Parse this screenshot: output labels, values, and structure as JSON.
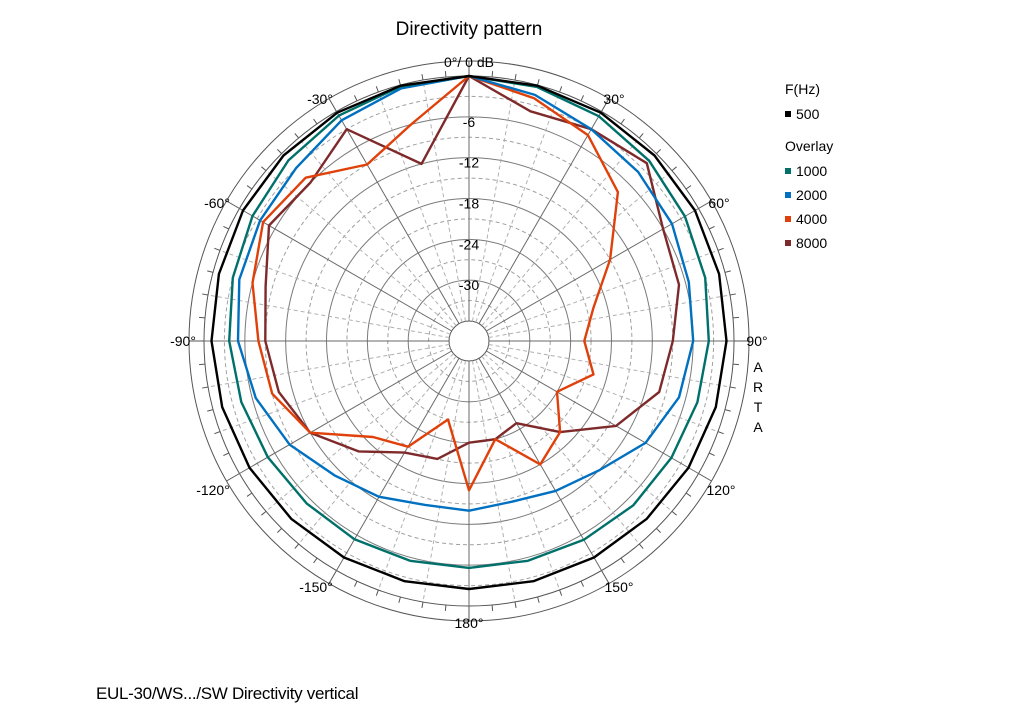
{
  "chart_data": {
    "type": "polar",
    "title": "Directivity pattern",
    "top_label": "0°/ 0 dB",
    "watermark": "ARTA",
    "angle_labels": [
      "-30°",
      "30°",
      "-60°",
      "60°",
      "-90°",
      "90°",
      "-120°",
      "120°",
      "-150°",
      "150°",
      "180°"
    ],
    "radial_labels": [
      "-6",
      "-12",
      "-18",
      "-24",
      "-30"
    ],
    "radial_range_db": [
      -36,
      0
    ],
    "radial_major_step_db": 6,
    "angular_major_step_deg": 30,
    "grid": true,
    "legend": {
      "position": "right",
      "primary_header": "F(Hz)",
      "overlay_header": "Overlay"
    },
    "angles_deg": [
      0,
      15,
      30,
      45,
      60,
      75,
      90,
      105,
      120,
      135,
      150,
      165,
      180,
      195,
      210,
      225,
      240,
      255,
      270,
      285,
      300,
      315,
      330,
      345
    ],
    "series": [
      {
        "name": "500",
        "group": "primary",
        "color": "#000000",
        "values": [
          0,
          -0.1,
          -0.2,
          -0.4,
          -0.6,
          -0.9,
          -1.1,
          -1.4,
          -1.7,
          -2.0,
          -2.2,
          -2.4,
          -2.5,
          -2.4,
          -2.2,
          -2.0,
          -1.7,
          -1.4,
          -1.1,
          -0.9,
          -0.6,
          -0.4,
          -0.2,
          -0.1
        ]
      },
      {
        "name": "1000",
        "group": "overlay",
        "color": "#00706b",
        "values": [
          0,
          -0.3,
          -0.8,
          -1.5,
          -2.3,
          -3.0,
          -3.7,
          -4.2,
          -4.6,
          -4.8,
          -5.2,
          -5.5,
          -5.6,
          -5.5,
          -5.3,
          -5.2,
          -4.8,
          -4.3,
          -3.7,
          -3.0,
          -2.2,
          -1.4,
          -0.7,
          -0.2
        ]
      },
      {
        "name": "2000",
        "group": "overlay",
        "color": "#0070c0",
        "values": [
          0,
          -1.5,
          -3.0,
          -3.8,
          -4.5,
          -5.5,
          -6.0,
          -7.0,
          -9.0,
          -12.0,
          -13.5,
          -14.5,
          -14.0,
          -14.0,
          -12.5,
          -11.0,
          -8.5,
          -6.5,
          -5.0,
          -4.0,
          -3.5,
          -3.0,
          -1.5,
          -0.5
        ]
      },
      {
        "name": "4000",
        "group": "overlay",
        "color": "#e0400a",
        "values": [
          0,
          -2.0,
          -4.0,
          -8.0,
          -15.0,
          -20.0,
          -22.0,
          -20.0,
          -24.0,
          -20.0,
          -18.0,
          -24.0,
          -17.0,
          -27.0,
          -21.0,
          -19.0,
          -12.0,
          -9.0,
          -8.0,
          -6.0,
          -4.0,
          -5.0,
          -9.0,
          -6.0
        ]
      },
      {
        "name": "8000",
        "group": "overlay",
        "color": "#7f2a2a",
        "values": [
          0,
          -4.0,
          -3.0,
          -2.0,
          -6.0,
          -7.0,
          -9.0,
          -10.0,
          -14.0,
          -20.0,
          -25.0,
          -24.0,
          -24.0,
          -21.0,
          -20.0,
          -16.0,
          -12.0,
          -10.0,
          -9.0,
          -8.0,
          -5.0,
          -6.0,
          -3.0,
          -12.0
        ]
      }
    ]
  },
  "caption": "EUL-30/WS.../SW  Directivity vertical"
}
